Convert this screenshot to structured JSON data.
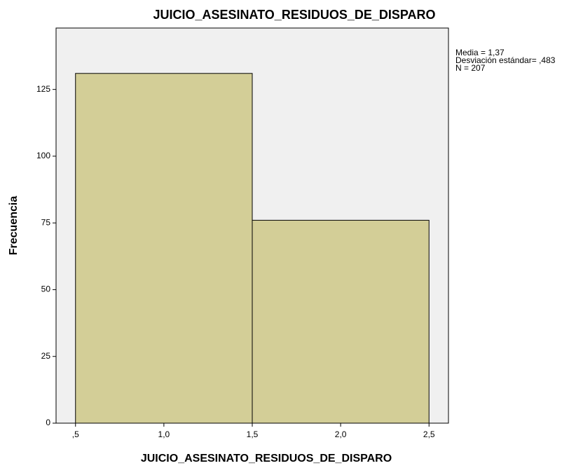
{
  "chart_data": {
    "type": "histogram",
    "title": "JUICIO_ASESINATO_RESIDUOS_DE_DISPARO",
    "xlabel": "JUICIO_ASESINATO_RESIDUOS_DE_DISPARO",
    "ylabel": "Frecuencia",
    "bins": [
      0.5,
      1.5,
      2.5
    ],
    "values": [
      131,
      76
    ],
    "color": "#d3ce97",
    "background": "#f0f0f0",
    "xlim": [
      0.39,
      2.61
    ],
    "ylim": [
      0,
      148
    ],
    "xticks": [
      {
        "value": 0.5,
        "label": ",5"
      },
      {
        "value": 1.0,
        "label": "1,0"
      },
      {
        "value": 1.5,
        "label": "1,5"
      },
      {
        "value": 2.0,
        "label": "2,0"
      },
      {
        "value": 2.5,
        "label": "2,5"
      }
    ],
    "yticks": [
      0,
      25,
      50,
      75,
      100,
      125
    ],
    "stats": [
      "Media = 1,37",
      "Desviación estándar= ,483",
      "N = 207"
    ]
  }
}
